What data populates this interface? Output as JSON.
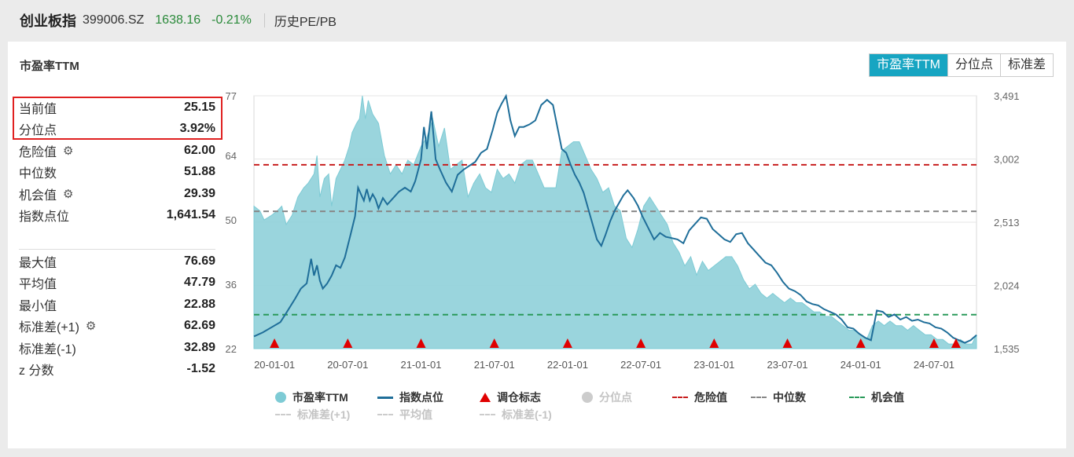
{
  "header": {
    "name": "创业板指",
    "code": "399006.SZ",
    "price": "1638.16",
    "change": "-0.21%",
    "link": "历史PE/PB"
  },
  "card": {
    "title": "市盈率TTM",
    "tabs": [
      "市盈率TTM",
      "分位点",
      "标准差"
    ]
  },
  "stats_top": [
    {
      "label": "当前值",
      "value": "25.15"
    },
    {
      "label": "分位点",
      "value": "3.92%"
    },
    {
      "label": "危险值",
      "value": "62.00",
      "gear": true
    },
    {
      "label": "中位数",
      "value": "51.88"
    },
    {
      "label": "机会值",
      "value": "29.39",
      "gear": true
    },
    {
      "label": "指数点位",
      "value": "1,641.54"
    }
  ],
  "stats_bottom": [
    {
      "label": "最大值",
      "value": "76.69"
    },
    {
      "label": "平均值",
      "value": "47.79"
    },
    {
      "label": "最小值",
      "value": "22.88"
    },
    {
      "label": "标准差(+1)",
      "value": "62.69",
      "gear": true
    },
    {
      "label": "标准差(-1)",
      "value": "32.89"
    },
    {
      "label": "z 分数",
      "value": "-1.52"
    }
  ],
  "legend": [
    {
      "label": "市盈率TTM",
      "kind": "dot",
      "color": "#7ecbd5"
    },
    {
      "label": "指数点位",
      "kind": "line",
      "color": "#1f6e99"
    },
    {
      "label": "调仓标志",
      "kind": "tri",
      "color": "#e00000"
    },
    {
      "label": "分位点",
      "kind": "dot",
      "color": "#cccccc",
      "dim": true
    },
    {
      "label": "危险值",
      "kind": "dash",
      "color": "#c81e1e"
    },
    {
      "label": "中位数",
      "kind": "dash",
      "color": "#888888"
    },
    {
      "label": "机会值",
      "kind": "dash",
      "color": "#2a9a5a"
    },
    {
      "label": "标准差(+1)",
      "kind": "dashdot",
      "color": "#cccccc",
      "dim": true
    },
    {
      "label": "平均值",
      "kind": "dashdot",
      "color": "#cccccc",
      "dim": true
    },
    {
      "label": "标准差(-1)",
      "kind": "dashdot",
      "color": "#cccccc",
      "dim": true
    }
  ],
  "chart_data": {
    "type": "area",
    "x_tick_labels": [
      "20-01-01",
      "20-07-01",
      "21-01-01",
      "21-07-01",
      "22-01-01",
      "22-07-01",
      "23-01-01",
      "23-07-01",
      "24-01-01",
      "24-07-01"
    ],
    "x_tick_pos": [
      0.0,
      0.5,
      1.0,
      1.5,
      2.0,
      2.5,
      3.0,
      3.5,
      4.0,
      4.5
    ],
    "x_range": [
      -0.14,
      4.79
    ],
    "y_left": {
      "ticks": [
        "22",
        "36",
        "50",
        "64",
        "77"
      ],
      "range": [
        22,
        77
      ]
    },
    "y_right": {
      "ticks": [
        "1,535",
        "2,024",
        "2,513",
        "3,002",
        "3,491"
      ],
      "range": [
        1535,
        3491
      ]
    },
    "ref_lines": [
      {
        "name": "危险值",
        "value": 62.0,
        "color": "#c81e1e"
      },
      {
        "name": "中位数",
        "value": 51.88,
        "color": "#888888"
      },
      {
        "name": "机会值",
        "value": 29.39,
        "color": "#2a9a5a"
      }
    ],
    "rebalance_x": [
      0.0,
      0.5,
      1.0,
      1.5,
      2.0,
      2.5,
      3.0,
      3.5,
      4.0,
      4.5,
      4.65
    ],
    "pe_series": [
      [
        -0.14,
        53
      ],
      [
        -0.1,
        52
      ],
      [
        -0.07,
        50
      ],
      [
        -0.02,
        51
      ],
      [
        0.02,
        52
      ],
      [
        0.05,
        53
      ],
      [
        0.08,
        49
      ],
      [
        0.12,
        51
      ],
      [
        0.16,
        55
      ],
      [
        0.2,
        57
      ],
      [
        0.23,
        58
      ],
      [
        0.27,
        60
      ],
      [
        0.29,
        64
      ],
      [
        0.31,
        55
      ],
      [
        0.34,
        59
      ],
      [
        0.37,
        60
      ],
      [
        0.39,
        53
      ],
      [
        0.42,
        59
      ],
      [
        0.45,
        61
      ],
      [
        0.48,
        63
      ],
      [
        0.51,
        66
      ],
      [
        0.53,
        69
      ],
      [
        0.56,
        71
      ],
      [
        0.58,
        72
      ],
      [
        0.6,
        77
      ],
      [
        0.62,
        72
      ],
      [
        0.64,
        76
      ],
      [
        0.67,
        73
      ],
      [
        0.71,
        71
      ],
      [
        0.75,
        64
      ],
      [
        0.79,
        60
      ],
      [
        0.83,
        62
      ],
      [
        0.87,
        60
      ],
      [
        0.91,
        63
      ],
      [
        0.95,
        62
      ],
      [
        1.0,
        66
      ],
      [
        1.04,
        68
      ],
      [
        1.08,
        72
      ],
      [
        1.12,
        66
      ],
      [
        1.16,
        70
      ],
      [
        1.2,
        61
      ],
      [
        1.24,
        62
      ],
      [
        1.28,
        63
      ],
      [
        1.32,
        55
      ],
      [
        1.36,
        58
      ],
      [
        1.4,
        60
      ],
      [
        1.44,
        57
      ],
      [
        1.48,
        56
      ],
      [
        1.52,
        61
      ],
      [
        1.56,
        59
      ],
      [
        1.6,
        60
      ],
      [
        1.64,
        58
      ],
      [
        1.68,
        62
      ],
      [
        1.72,
        63
      ],
      [
        1.76,
        63
      ],
      [
        1.8,
        60
      ],
      [
        1.84,
        57
      ],
      [
        1.88,
        57
      ],
      [
        1.92,
        57
      ],
      [
        1.96,
        65
      ],
      [
        2.0,
        66
      ],
      [
        2.04,
        67
      ],
      [
        2.08,
        67
      ],
      [
        2.12,
        64
      ],
      [
        2.16,
        61
      ],
      [
        2.2,
        59
      ],
      [
        2.24,
        56
      ],
      [
        2.28,
        57
      ],
      [
        2.32,
        53
      ],
      [
        2.36,
        52
      ],
      [
        2.4,
        46
      ],
      [
        2.44,
        44
      ],
      [
        2.48,
        48
      ],
      [
        2.52,
        53
      ],
      [
        2.56,
        55
      ],
      [
        2.6,
        53
      ],
      [
        2.64,
        51
      ],
      [
        2.68,
        49
      ],
      [
        2.72,
        45
      ],
      [
        2.76,
        43
      ],
      [
        2.8,
        40
      ],
      [
        2.84,
        42
      ],
      [
        2.88,
        38
      ],
      [
        2.92,
        41
      ],
      [
        2.96,
        39
      ],
      [
        3.0,
        40
      ],
      [
        3.04,
        41
      ],
      [
        3.08,
        42
      ],
      [
        3.12,
        42
      ],
      [
        3.16,
        40
      ],
      [
        3.2,
        37
      ],
      [
        3.24,
        35
      ],
      [
        3.28,
        36
      ],
      [
        3.32,
        34
      ],
      [
        3.36,
        33
      ],
      [
        3.4,
        34
      ],
      [
        3.44,
        33
      ],
      [
        3.48,
        32
      ],
      [
        3.52,
        33
      ],
      [
        3.56,
        32
      ],
      [
        3.6,
        32
      ],
      [
        3.64,
        31
      ],
      [
        3.68,
        30
      ],
      [
        3.72,
        30
      ],
      [
        3.76,
        29
      ],
      [
        3.8,
        29
      ],
      [
        3.84,
        28
      ],
      [
        3.88,
        27
      ],
      [
        3.92,
        26
      ],
      [
        3.96,
        26
      ],
      [
        4.0,
        25
      ],
      [
        4.04,
        24
      ],
      [
        4.08,
        27
      ],
      [
        4.12,
        28
      ],
      [
        4.16,
        27
      ],
      [
        4.2,
        28
      ],
      [
        4.24,
        27
      ],
      [
        4.28,
        27
      ],
      [
        4.32,
        26
      ],
      [
        4.36,
        27
      ],
      [
        4.4,
        26
      ],
      [
        4.44,
        25
      ],
      [
        4.48,
        25
      ],
      [
        4.52,
        24
      ],
      [
        4.56,
        24
      ],
      [
        4.6,
        23
      ],
      [
        4.64,
        23
      ],
      [
        4.68,
        24
      ],
      [
        4.72,
        23
      ],
      [
        4.76,
        23
      ],
      [
        4.79,
        25
      ]
    ],
    "index_series": [
      [
        -0.14,
        1630
      ],
      [
        -0.08,
        1660
      ],
      [
        -0.02,
        1700
      ],
      [
        0.04,
        1740
      ],
      [
        0.08,
        1810
      ],
      [
        0.14,
        1920
      ],
      [
        0.18,
        2000
      ],
      [
        0.22,
        2040
      ],
      [
        0.25,
        2230
      ],
      [
        0.27,
        2100
      ],
      [
        0.29,
        2180
      ],
      [
        0.31,
        2060
      ],
      [
        0.33,
        2000
      ],
      [
        0.36,
        2040
      ],
      [
        0.39,
        2100
      ],
      [
        0.42,
        2180
      ],
      [
        0.45,
        2160
      ],
      [
        0.48,
        2240
      ],
      [
        0.52,
        2420
      ],
      [
        0.55,
        2560
      ],
      [
        0.57,
        2780
      ],
      [
        0.59,
        2730
      ],
      [
        0.61,
        2680
      ],
      [
        0.63,
        2770
      ],
      [
        0.65,
        2680
      ],
      [
        0.67,
        2730
      ],
      [
        0.69,
        2690
      ],
      [
        0.71,
        2620
      ],
      [
        0.74,
        2700
      ],
      [
        0.77,
        2650
      ],
      [
        0.81,
        2700
      ],
      [
        0.85,
        2750
      ],
      [
        0.89,
        2780
      ],
      [
        0.93,
        2750
      ],
      [
        0.96,
        2830
      ],
      [
        1.0,
        3000
      ],
      [
        1.02,
        3250
      ],
      [
        1.04,
        3080
      ],
      [
        1.07,
        3370
      ],
      [
        1.1,
        3000
      ],
      [
        1.13,
        2920
      ],
      [
        1.17,
        2820
      ],
      [
        1.21,
        2750
      ],
      [
        1.25,
        2880
      ],
      [
        1.29,
        2920
      ],
      [
        1.33,
        2950
      ],
      [
        1.37,
        2980
      ],
      [
        1.41,
        3050
      ],
      [
        1.45,
        3080
      ],
      [
        1.49,
        3230
      ],
      [
        1.52,
        3360
      ],
      [
        1.55,
        3430
      ],
      [
        1.58,
        3490
      ],
      [
        1.61,
        3300
      ],
      [
        1.64,
        3180
      ],
      [
        1.67,
        3250
      ],
      [
        1.7,
        3250
      ],
      [
        1.74,
        3270
      ],
      [
        1.78,
        3300
      ],
      [
        1.82,
        3420
      ],
      [
        1.86,
        3460
      ],
      [
        1.9,
        3420
      ],
      [
        1.93,
        3250
      ],
      [
        1.96,
        3080
      ],
      [
        1.99,
        3050
      ],
      [
        2.02,
        2960
      ],
      [
        2.05,
        2880
      ],
      [
        2.08,
        2820
      ],
      [
        2.11,
        2740
      ],
      [
        2.14,
        2620
      ],
      [
        2.17,
        2500
      ],
      [
        2.2,
        2380
      ],
      [
        2.23,
        2330
      ],
      [
        2.26,
        2420
      ],
      [
        2.29,
        2520
      ],
      [
        2.32,
        2600
      ],
      [
        2.35,
        2660
      ],
      [
        2.38,
        2720
      ],
      [
        2.41,
        2760
      ],
      [
        2.45,
        2700
      ],
      [
        2.48,
        2640
      ],
      [
        2.51,
        2560
      ],
      [
        2.55,
        2470
      ],
      [
        2.59,
        2380
      ],
      [
        2.63,
        2430
      ],
      [
        2.67,
        2400
      ],
      [
        2.71,
        2390
      ],
      [
        2.75,
        2380
      ],
      [
        2.79,
        2350
      ],
      [
        2.83,
        2450
      ],
      [
        2.87,
        2500
      ],
      [
        2.91,
        2550
      ],
      [
        2.95,
        2540
      ],
      [
        2.99,
        2460
      ],
      [
        3.03,
        2420
      ],
      [
        3.07,
        2380
      ],
      [
        3.11,
        2360
      ],
      [
        3.15,
        2420
      ],
      [
        3.19,
        2430
      ],
      [
        3.23,
        2350
      ],
      [
        3.27,
        2300
      ],
      [
        3.31,
        2250
      ],
      [
        3.35,
        2200
      ],
      [
        3.39,
        2180
      ],
      [
        3.43,
        2120
      ],
      [
        3.47,
        2050
      ],
      [
        3.51,
        2000
      ],
      [
        3.55,
        1980
      ],
      [
        3.59,
        1950
      ],
      [
        3.63,
        1900
      ],
      [
        3.67,
        1880
      ],
      [
        3.71,
        1870
      ],
      [
        3.75,
        1840
      ],
      [
        3.79,
        1820
      ],
      [
        3.83,
        1800
      ],
      [
        3.87,
        1760
      ],
      [
        3.91,
        1700
      ],
      [
        3.95,
        1690
      ],
      [
        3.99,
        1650
      ],
      [
        4.03,
        1620
      ],
      [
        4.07,
        1600
      ],
      [
        4.11,
        1830
      ],
      [
        4.15,
        1820
      ],
      [
        4.19,
        1780
      ],
      [
        4.23,
        1800
      ],
      [
        4.27,
        1760
      ],
      [
        4.31,
        1780
      ],
      [
        4.35,
        1750
      ],
      [
        4.39,
        1760
      ],
      [
        4.43,
        1740
      ],
      [
        4.47,
        1730
      ],
      [
        4.51,
        1700
      ],
      [
        4.55,
        1690
      ],
      [
        4.59,
        1660
      ],
      [
        4.63,
        1620
      ],
      [
        4.67,
        1600
      ],
      [
        4.71,
        1580
      ],
      [
        4.75,
        1600
      ],
      [
        4.79,
        1640
      ]
    ]
  }
}
